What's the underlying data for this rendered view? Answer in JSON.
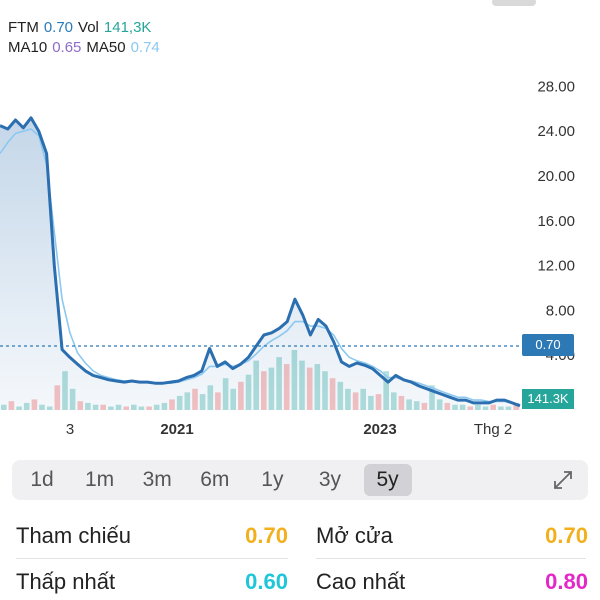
{
  "legend": {
    "symbol": "FTM",
    "price": "0.70",
    "vol_label": "Vol",
    "vol": "141,3K",
    "ma10_label": "MA10",
    "ma10": "0.65",
    "ma50_label": "MA50",
    "ma50": "0.74"
  },
  "tags": {
    "price": "0.70",
    "volume": "141.3K"
  },
  "chart_data": {
    "type": "line",
    "y_ticks": [
      "28.00",
      "24.00",
      "20.00",
      "16.00",
      "12.00",
      "8.00",
      "4.00"
    ],
    "ylim": [
      0,
      28
    ],
    "x_tick_labels": [
      "3",
      "2021",
      "2023",
      "Thg 2"
    ],
    "series": [
      {
        "name": "FTM",
        "values": [
          24.5,
          24.2,
          25.0,
          24.3,
          25.2,
          24.0,
          22.0,
          12.0,
          4.5,
          3.8,
          3.2,
          2.6,
          2.2,
          2.0,
          1.8,
          1.7,
          1.6,
          1.7,
          1.6,
          1.6,
          1.5,
          1.5,
          1.6,
          1.7,
          2.0,
          2.2,
          2.6,
          4.6,
          3.0,
          3.4,
          2.8,
          3.2,
          3.8,
          4.8,
          5.8,
          6.0,
          6.4,
          7.0,
          9.0,
          7.6,
          5.8,
          7.2,
          6.6,
          5.2,
          3.4,
          3.0,
          3.3,
          3.1,
          2.8,
          2.2,
          1.6,
          2.2,
          1.8,
          1.6,
          1.4,
          1.3,
          1.2,
          1.1,
          1.0,
          0.9,
          0.9,
          0.8,
          0.8,
          0.8,
          0.9,
          0.9,
          0.8,
          0.7
        ]
      },
      {
        "name": "MA50",
        "values": [
          22.0,
          23.0,
          23.8,
          24.0,
          24.2,
          23.6,
          21.0,
          15.0,
          9.0,
          6.0,
          4.2,
          3.3,
          2.6,
          2.2,
          2.0,
          1.8,
          1.7,
          1.7,
          1.6,
          1.6,
          1.5,
          1.5,
          1.5,
          1.6,
          1.8,
          2.0,
          2.3,
          3.0,
          3.0,
          3.2,
          3.0,
          3.2,
          3.5,
          4.1,
          4.8,
          5.3,
          5.7,
          6.2,
          7.0,
          7.0,
          6.6,
          6.6,
          6.4,
          5.8,
          4.6,
          3.8,
          3.5,
          3.3,
          3.0,
          2.6,
          2.0,
          2.0,
          1.8,
          1.7,
          1.5,
          1.4,
          1.3,
          1.2,
          1.1,
          1.0,
          1.0,
          0.9,
          0.9,
          0.85,
          0.85,
          0.85,
          0.8,
          0.74
        ]
      }
    ],
    "volume": [
      3,
      5,
      2,
      4,
      6,
      3,
      2,
      14,
      22,
      12,
      5,
      4,
      3,
      3,
      2,
      3,
      2,
      3,
      2,
      2,
      3,
      4,
      6,
      8,
      10,
      12,
      9,
      14,
      10,
      18,
      12,
      16,
      20,
      28,
      22,
      24,
      30,
      26,
      34,
      28,
      24,
      26,
      22,
      18,
      16,
      12,
      10,
      12,
      8,
      9,
      22,
      10,
      8,
      6,
      5,
      4,
      14,
      6,
      4,
      3,
      3,
      2,
      3,
      2,
      3,
      2,
      2,
      4
    ],
    "current_price": 0.7,
    "grid": false
  },
  "ranges": [
    "1d",
    "1m",
    "3m",
    "6m",
    "1y",
    "3y",
    "5y"
  ],
  "active_range": "5y",
  "stats": {
    "reference": {
      "label": "Tham chiếu",
      "value": "0.70",
      "color": "#f2b01e"
    },
    "open": {
      "label": "Mở cửa",
      "value": "0.70",
      "color": "#f2b01e"
    },
    "low": {
      "label": "Thấp nhất",
      "value": "0.60",
      "color": "#1fc6d9"
    },
    "high": {
      "label": "Cao nhất",
      "value": "0.80",
      "color": "#e526c8"
    }
  },
  "colors": {
    "line": "#2c6fb0",
    "ma50": "#8cc8f0",
    "volume_up": "#26a69a",
    "volume_down": "#ef5350"
  }
}
